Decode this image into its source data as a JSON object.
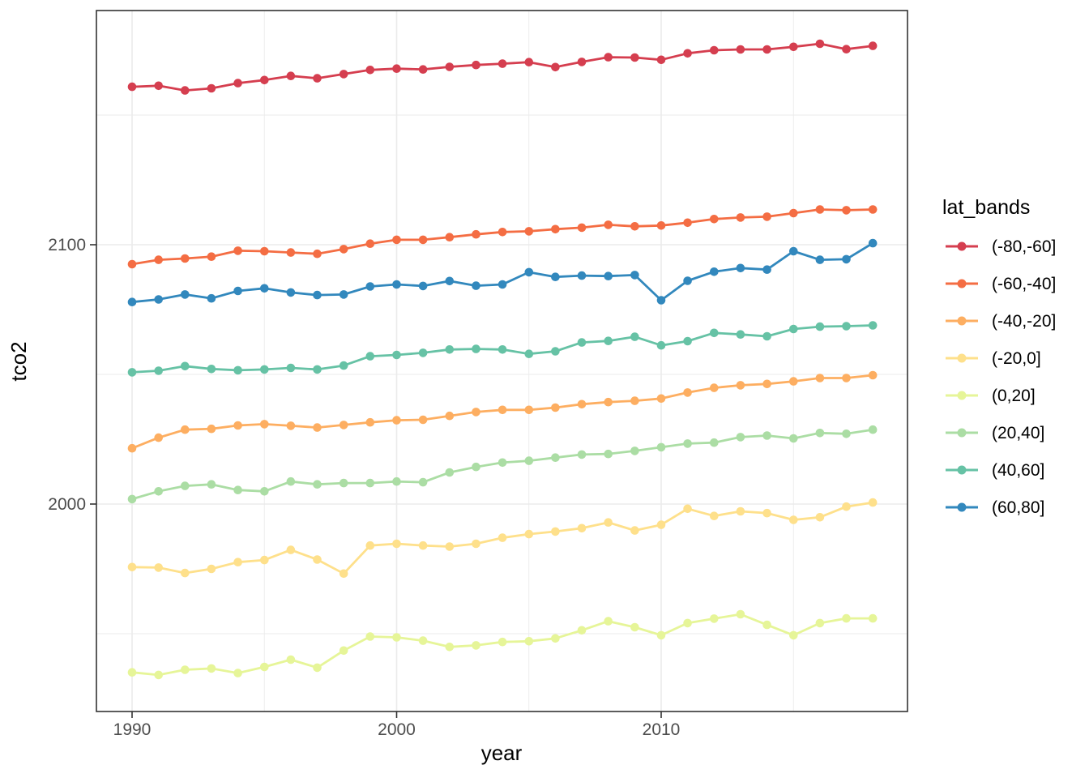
{
  "chart_data": {
    "type": "line",
    "title": "",
    "xlabel": "year",
    "ylabel": "tco2",
    "legend_title": "lat_bands",
    "legend_position": "right",
    "grid": true,
    "background": "#ffffff",
    "panel_background": "#ffffff",
    "grid_color": "#ebebeb",
    "panel_border_color": "#333333",
    "tick_color": "#333333",
    "tick_label_color": "#4d4d4d",
    "x": [
      1990,
      1991,
      1992,
      1993,
      1994,
      1995,
      1996,
      1997,
      1998,
      1999,
      2000,
      2001,
      2002,
      2003,
      2004,
      2005,
      2006,
      2007,
      2008,
      2009,
      2010,
      2011,
      2012,
      2013,
      2014,
      2015,
      2016,
      2017,
      2018
    ],
    "xlim": [
      1988.6,
      2019.4
    ],
    "ylim": [
      1920,
      2190.3
    ],
    "x_ticks": [
      1990,
      2000,
      2010
    ],
    "x_tick_labels": [
      "1990",
      "2000",
      "2010"
    ],
    "x_minor_breaks": [
      1995,
      2005,
      2015
    ],
    "y_ticks": [
      2000,
      2100
    ],
    "y_tick_labels": [
      "2000",
      "2100"
    ],
    "y_minor_breaks": [
      1950,
      2050,
      2150
    ],
    "series": [
      {
        "name": "(-80,-60]",
        "color": "#d53e4f",
        "values": [
          2160.9,
          2161.3,
          2159.5,
          2160.3,
          2162.3,
          2163.5,
          2165.1,
          2164.2,
          2165.8,
          2167.4,
          2167.9,
          2167.6,
          2168.6,
          2169.3,
          2169.8,
          2170.4,
          2168.5,
          2170.5,
          2172.3,
          2172.2,
          2171.3,
          2173.8,
          2175.0,
          2175.3,
          2175.3,
          2176.3,
          2177.5,
          2175.4,
          2176.7
        ]
      },
      {
        "name": "(-60,-40]",
        "color": "#f46d43",
        "values": [
          2092.5,
          2094.2,
          2094.7,
          2095.4,
          2097.7,
          2097.5,
          2097.0,
          2096.5,
          2098.3,
          2100.4,
          2101.9,
          2101.9,
          2102.9,
          2104.0,
          2104.9,
          2105.2,
          2106.0,
          2106.6,
          2107.7,
          2107.1,
          2107.4,
          2108.5,
          2109.9,
          2110.5,
          2110.8,
          2112.2,
          2113.6,
          2113.3,
          2113.6
        ]
      },
      {
        "name": "(-40,-20]",
        "color": "#fdae61",
        "values": [
          2021.5,
          2025.6,
          2028.7,
          2029.0,
          2030.3,
          2030.8,
          2030.2,
          2029.5,
          2030.5,
          2031.5,
          2032.3,
          2032.5,
          2034.0,
          2035.5,
          2036.3,
          2036.3,
          2037.2,
          2038.5,
          2039.3,
          2039.8,
          2040.7,
          2043.0,
          2044.8,
          2045.8,
          2046.3,
          2047.3,
          2048.6,
          2048.6,
          2049.7
        ]
      },
      {
        "name": "(-20,0]",
        "color": "#fee08b",
        "values": [
          1975.7,
          1975.5,
          1973.4,
          1975.0,
          1977.6,
          1978.4,
          1982.3,
          1978.6,
          1973.2,
          1984.0,
          1984.7,
          1984.0,
          1983.6,
          1984.7,
          1987.0,
          1988.4,
          1989.4,
          1990.7,
          1992.9,
          1989.8,
          1992.0,
          1998.2,
          1995.4,
          1997.2,
          1996.5,
          1993.9,
          1994.9,
          1999.0,
          2000.6
        ]
      },
      {
        "name": "(0,20]",
        "color": "#e6f598",
        "values": [
          1935.1,
          1934.1,
          1936.1,
          1936.6,
          1934.8,
          1937.2,
          1940.0,
          1936.9,
          1943.5,
          1948.9,
          1948.6,
          1947.3,
          1944.9,
          1945.5,
          1946.8,
          1947.1,
          1948.2,
          1951.3,
          1954.8,
          1952.5,
          1949.4,
          1954.1,
          1955.8,
          1957.5,
          1953.4,
          1949.4,
          1954.1,
          1955.9,
          1955.9
        ]
      },
      {
        "name": "(20,40]",
        "color": "#abdda4",
        "values": [
          2001.9,
          2004.9,
          2007.0,
          2007.6,
          2005.4,
          2004.9,
          2008.7,
          2007.6,
          2008.1,
          2008.1,
          2008.7,
          2008.4,
          2012.2,
          2014.3,
          2016.0,
          2016.7,
          2017.9,
          2019.1,
          2019.3,
          2020.5,
          2021.9,
          2023.3,
          2023.7,
          2025.8,
          2026.4,
          2025.3,
          2027.4,
          2027.1,
          2028.7
        ]
      },
      {
        "name": "(40,60]",
        "color": "#66c2a5",
        "values": [
          2050.8,
          2051.4,
          2053.2,
          2052.1,
          2051.6,
          2051.9,
          2052.5,
          2051.9,
          2053.4,
          2057.0,
          2057.5,
          2058.3,
          2059.6,
          2059.8,
          2059.6,
          2057.9,
          2058.9,
          2062.3,
          2062.9,
          2064.5,
          2061.2,
          2062.8,
          2066.0,
          2065.4,
          2064.7,
          2067.5,
          2068.4,
          2068.6,
          2068.9
        ]
      },
      {
        "name": "(60,80]",
        "color": "#3288bd",
        "values": [
          2077.9,
          2078.9,
          2080.8,
          2079.3,
          2082.2,
          2083.2,
          2081.6,
          2080.6,
          2080.8,
          2083.9,
          2084.7,
          2084.1,
          2086.0,
          2084.2,
          2084.7,
          2089.4,
          2087.6,
          2088.1,
          2087.9,
          2088.3,
          2078.6,
          2086.1,
          2089.6,
          2091.0,
          2090.4,
          2097.5,
          2094.2,
          2094.4,
          2100.6
        ]
      }
    ]
  }
}
